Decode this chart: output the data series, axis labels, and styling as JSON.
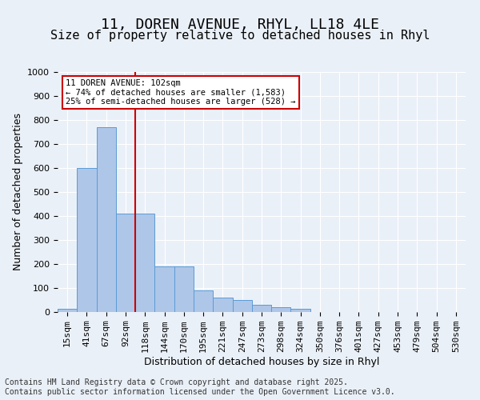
{
  "title_line1": "11, DOREN AVENUE, RHYL, LL18 4LE",
  "title_line2": "Size of property relative to detached houses in Rhyl",
  "xlabel": "Distribution of detached houses by size in Rhyl",
  "ylabel": "Number of detached properties",
  "bin_labels": [
    "15sqm",
    "41sqm",
    "67sqm",
    "92sqm",
    "118sqm",
    "144sqm",
    "170sqm",
    "195sqm",
    "221sqm",
    "247sqm",
    "273sqm",
    "298sqm",
    "324sqm",
    "350sqm",
    "376sqm",
    "401sqm",
    "427sqm",
    "453sqm",
    "479sqm",
    "504sqm",
    "530sqm"
  ],
  "bar_values": [
    15,
    600,
    770,
    410,
    410,
    190,
    190,
    90,
    60,
    50,
    30,
    20,
    15,
    0,
    0,
    0,
    0,
    0,
    0,
    0,
    0
  ],
  "bar_color": "#aec6e8",
  "bar_edge_color": "#5b9bd5",
  "vline_pos": 3.5,
  "vline_color": "#cc0000",
  "annotation_text": "11 DOREN AVENUE: 102sqm\n← 74% of detached houses are smaller (1,583)\n25% of semi-detached houses are larger (528) →",
  "annotation_box_color": "#cc0000",
  "annotation_text_color": "#000000",
  "ylim": [
    0,
    1000
  ],
  "yticks": [
    0,
    100,
    200,
    300,
    400,
    500,
    600,
    700,
    800,
    900,
    1000
  ],
  "background_color": "#eaf0f8",
  "plot_background_color": "#eaf0f8",
  "grid_color": "#ffffff",
  "footer_text": "Contains HM Land Registry data © Crown copyright and database right 2025.\nContains public sector information licensed under the Open Government Licence v3.0.",
  "title_fontsize": 13,
  "subtitle_fontsize": 11,
  "axis_label_fontsize": 9,
  "tick_fontsize": 8,
  "footer_fontsize": 7
}
